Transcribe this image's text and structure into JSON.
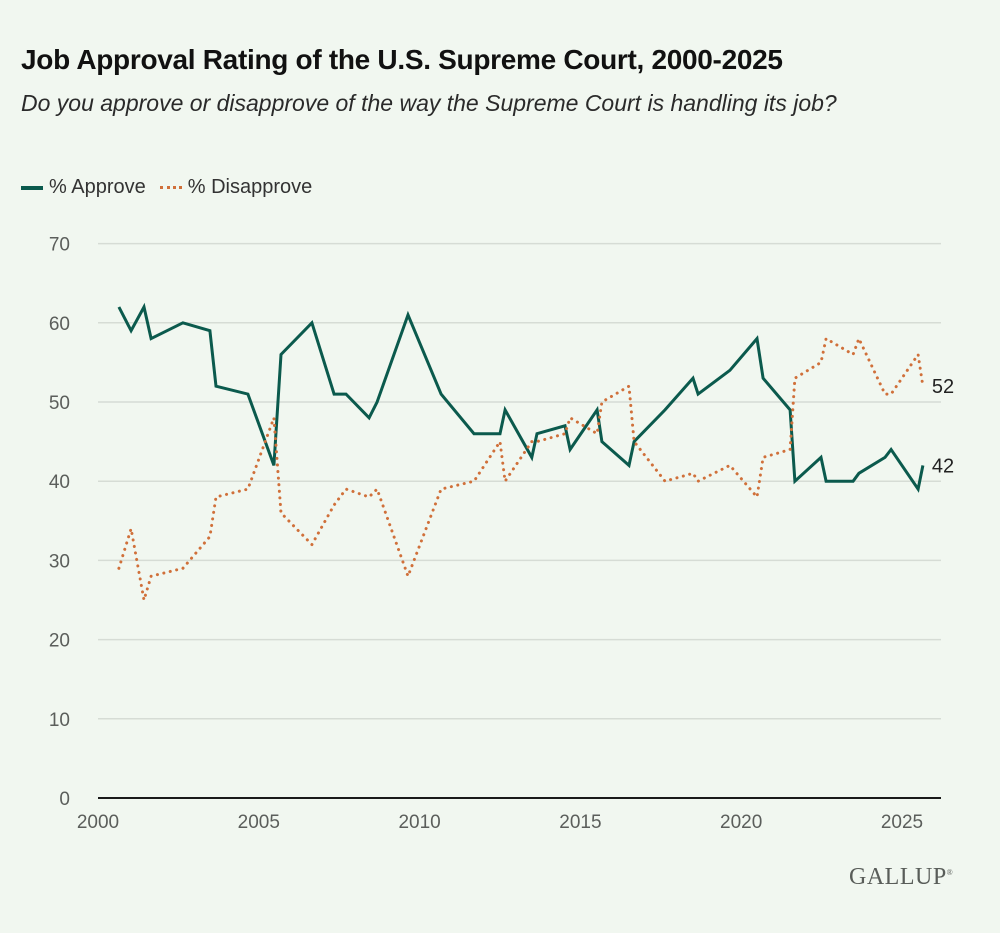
{
  "header": {
    "title": "Job Approval Rating of the U.S. Supreme Court, 2000-2025",
    "subtitle": "Do you approve or disapprove of the way the Supreme Court is handling its job?"
  },
  "legend": {
    "approve_label": "% Approve",
    "disapprove_label": "% Disapprove"
  },
  "branding": {
    "logo_text": "GALLUP",
    "logo_mark": "®"
  },
  "colors": {
    "approve": "#0b5a4d",
    "disapprove": "#d0703a",
    "grid": "#d6dcd5",
    "background": "#f1f7f0"
  },
  "chart_data": {
    "type": "line",
    "title": "Job Approval Rating of the U.S. Supreme Court, 2000-2025",
    "subtitle": "Do you approve or disapprove of the way the Supreme Court is handling its job?",
    "xlabel": "",
    "ylabel": "",
    "xlim": [
      2000,
      2026.2
    ],
    "ylim": [
      0,
      70
    ],
    "x_ticks": [
      2000,
      2005,
      2010,
      2015,
      2020,
      2025
    ],
    "y_ticks": [
      0,
      10,
      20,
      30,
      40,
      50,
      60,
      70
    ],
    "grid": true,
    "legend_position": "top-left",
    "x": [
      2000.65,
      2001.03,
      2001.43,
      2001.65,
      2002.64,
      2003.48,
      2003.67,
      2004.66,
      2005.47,
      2005.69,
      2006.65,
      2007.34,
      2007.71,
      2008.43,
      2008.68,
      2009.64,
      2010.67,
      2011.69,
      2012.5,
      2012.66,
      2013.49,
      2013.65,
      2014.52,
      2014.68,
      2015.52,
      2015.67,
      2016.51,
      2016.67,
      2017.63,
      2018.5,
      2018.66,
      2019.65,
      2020.49,
      2020.68,
      2021.52,
      2021.67,
      2022.48,
      2022.64,
      2023.48,
      2023.66,
      2024.47,
      2024.66,
      2025.5,
      2025.65
    ],
    "series": [
      {
        "name": "% Approve",
        "style": "solid",
        "values": [
          62,
          59,
          62,
          58,
          60,
          59,
          52,
          51,
          42,
          56,
          60,
          51,
          51,
          48,
          50,
          61,
          51,
          46,
          46,
          49,
          43,
          46,
          47,
          44,
          49,
          45,
          42,
          45,
          49,
          53,
          51,
          54,
          58,
          53,
          49,
          40,
          43,
          40,
          40,
          41,
          43,
          44,
          39,
          42
        ],
        "end_label": "42"
      },
      {
        "name": "% Disapprove",
        "style": "dotted",
        "values": [
          29,
          34,
          25,
          28,
          29,
          33,
          38,
          39,
          48,
          36,
          32,
          37,
          39,
          38,
          39,
          28,
          39,
          40,
          45,
          40,
          45,
          45,
          46,
          48,
          46,
          50,
          52,
          45,
          40,
          41,
          40,
          42,
          38,
          43,
          44,
          53,
          55,
          58,
          56,
          58,
          51,
          51,
          56,
          52
        ],
        "end_label": "52"
      }
    ]
  }
}
